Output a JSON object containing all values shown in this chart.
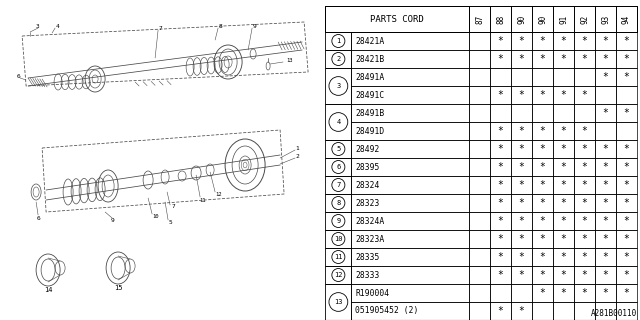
{
  "diagram_label": "A281B00110",
  "bg_color": "#f5f5f5",
  "col_header": "PARTS CORD",
  "year_cols": [
    "87",
    "88",
    "90",
    "90",
    "91",
    "92",
    "93",
    "94"
  ],
  "rows": [
    {
      "num": "1",
      "parts": [
        {
          "code": "28421A",
          "stars": [
            false,
            true,
            true,
            true,
            true,
            true,
            true,
            true
          ]
        }
      ]
    },
    {
      "num": "2",
      "parts": [
        {
          "code": "28421B",
          "stars": [
            false,
            true,
            true,
            true,
            true,
            true,
            true,
            true
          ]
        }
      ]
    },
    {
      "num": "3",
      "parts": [
        {
          "code": "28491A",
          "stars": [
            false,
            false,
            false,
            false,
            false,
            false,
            true,
            true
          ]
        },
        {
          "code": "28491C",
          "stars": [
            false,
            true,
            true,
            true,
            true,
            true,
            false,
            false
          ]
        }
      ]
    },
    {
      "num": "4",
      "parts": [
        {
          "code": "28491B",
          "stars": [
            false,
            false,
            false,
            false,
            false,
            false,
            true,
            true
          ]
        },
        {
          "code": "28491D",
          "stars": [
            false,
            true,
            true,
            true,
            true,
            true,
            false,
            false
          ]
        }
      ]
    },
    {
      "num": "5",
      "parts": [
        {
          "code": "28492",
          "stars": [
            false,
            true,
            true,
            true,
            true,
            true,
            true,
            true
          ]
        }
      ]
    },
    {
      "num": "6",
      "parts": [
        {
          "code": "28395",
          "stars": [
            false,
            true,
            true,
            true,
            true,
            true,
            true,
            true
          ]
        }
      ]
    },
    {
      "num": "7",
      "parts": [
        {
          "code": "28324",
          "stars": [
            false,
            true,
            true,
            true,
            true,
            true,
            true,
            true
          ]
        }
      ]
    },
    {
      "num": "8",
      "parts": [
        {
          "code": "28323",
          "stars": [
            false,
            true,
            true,
            true,
            true,
            true,
            true,
            true
          ]
        }
      ]
    },
    {
      "num": "9",
      "parts": [
        {
          "code": "28324A",
          "stars": [
            false,
            true,
            true,
            true,
            true,
            true,
            true,
            true
          ]
        }
      ]
    },
    {
      "num": "10",
      "parts": [
        {
          "code": "28323A",
          "stars": [
            false,
            true,
            true,
            true,
            true,
            true,
            true,
            true
          ]
        }
      ]
    },
    {
      "num": "11",
      "parts": [
        {
          "code": "28335",
          "stars": [
            false,
            true,
            true,
            true,
            true,
            true,
            true,
            true
          ]
        }
      ]
    },
    {
      "num": "12",
      "parts": [
        {
          "code": "28333",
          "stars": [
            false,
            true,
            true,
            true,
            true,
            true,
            true,
            true
          ]
        }
      ]
    },
    {
      "num": "13",
      "parts": [
        {
          "code": "R190004",
          "stars": [
            false,
            false,
            false,
            true,
            true,
            true,
            true,
            true
          ]
        },
        {
          "code": "051905452 (2)",
          "stars": [
            false,
            true,
            true,
            false,
            false,
            false,
            false,
            false
          ]
        }
      ]
    }
  ]
}
